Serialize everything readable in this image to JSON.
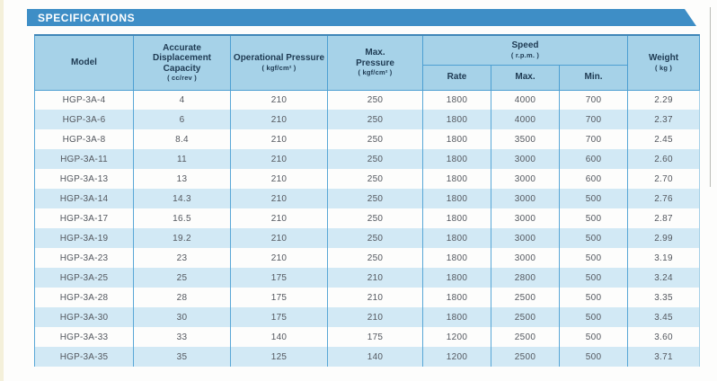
{
  "title_bar": {
    "label": "SPECIFICATIONS"
  },
  "colors": {
    "accent_blue": "#3e8ec6",
    "header_bg": "#a6d2e8",
    "stripe_blue": "#d2e9f5",
    "border_blue": "#4d9fd2",
    "header_text": "#1e3a52",
    "body_text": "#54585f"
  },
  "table": {
    "header": {
      "model": {
        "label": "Model"
      },
      "capacity": {
        "label": "Accurate Displacement Capacity",
        "unit": "( cc/rev )"
      },
      "operational_pressure": {
        "label": "Operational Pressure",
        "unit": "( kgf/cm² )"
      },
      "max_pressure": {
        "label": "Max. Pressure",
        "unit": "( kgf/cm² )"
      },
      "speed": {
        "label": "Speed",
        "unit": "( r.p.m. )",
        "sub": [
          "Rate",
          "Max.",
          "Min."
        ]
      },
      "weight": {
        "label": "Weight",
        "unit": "( kg )"
      }
    },
    "rows": [
      [
        "HGP-3A-4",
        "4",
        "210",
        "250",
        "1800",
        "4000",
        "700",
        "2.29"
      ],
      [
        "HGP-3A-6",
        "6",
        "210",
        "250",
        "1800",
        "4000",
        "700",
        "2.37"
      ],
      [
        "HGP-3A-8",
        "8.4",
        "210",
        "250",
        "1800",
        "3500",
        "700",
        "2.45"
      ],
      [
        "HGP-3A-11",
        "11",
        "210",
        "250",
        "1800",
        "3000",
        "600",
        "2.60"
      ],
      [
        "HGP-3A-13",
        "13",
        "210",
        "250",
        "1800",
        "3000",
        "600",
        "2.70"
      ],
      [
        "HGP-3A-14",
        "14.3",
        "210",
        "250",
        "1800",
        "3000",
        "500",
        "2.76"
      ],
      [
        "HGP-3A-17",
        "16.5",
        "210",
        "250",
        "1800",
        "3000",
        "500",
        "2.87"
      ],
      [
        "HGP-3A-19",
        "19.2",
        "210",
        "250",
        "1800",
        "3000",
        "500",
        "2.99"
      ],
      [
        "HGP-3A-23",
        "23",
        "210",
        "250",
        "1800",
        "3000",
        "500",
        "3.19"
      ],
      [
        "HGP-3A-25",
        "25",
        "175",
        "210",
        "1800",
        "2800",
        "500",
        "3.24"
      ],
      [
        "HGP-3A-28",
        "28",
        "175",
        "210",
        "1800",
        "2500",
        "500",
        "3.35"
      ],
      [
        "HGP-3A-30",
        "30",
        "175",
        "210",
        "1800",
        "2500",
        "500",
        "3.45"
      ],
      [
        "HGP-3A-33",
        "33",
        "140",
        "175",
        "1200",
        "2500",
        "500",
        "3.60"
      ],
      [
        "HGP-3A-35",
        "35",
        "125",
        "140",
        "1200",
        "2500",
        "500",
        "3.71"
      ]
    ]
  }
}
